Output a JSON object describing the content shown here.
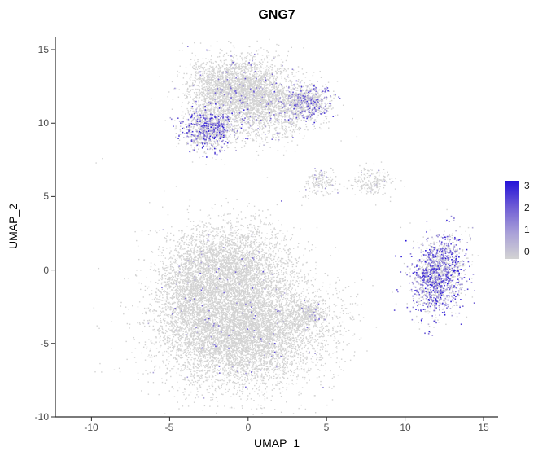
{
  "title": "GNG7",
  "axes": {
    "x_label": "UMAP_1",
    "y_label": "UMAP_2"
  },
  "chart_data": {
    "type": "scatter",
    "title": "GNG7",
    "xlabel": "UMAP_1",
    "ylabel": "UMAP_2",
    "xlim": [
      -12.3,
      15.9
    ],
    "ylim": [
      -10,
      15.9
    ],
    "xticks": [
      "-10",
      "-5",
      "0",
      "5",
      "10",
      "15"
    ],
    "yticks": [
      "15",
      "10",
      "5",
      "0",
      "-5",
      "-10"
    ],
    "legend_ticks": [
      "3",
      "2",
      "1",
      "0"
    ],
    "grid": false,
    "legend_position": "right",
    "color_scale": {
      "domain": [
        0,
        3
      ],
      "stops": [
        "#d3d3d3",
        "#a9a0d8",
        "#6e5cd5",
        "#2311d8"
      ],
      "zero_color": "#d3d3d3"
    },
    "clusters": [
      {
        "name": "upper-blob-right-lobe",
        "cx": 0.3,
        "cy": 12.3,
        "sx": 1.3,
        "sy": 1.1,
        "n": 2000,
        "expr_frac": 0.035,
        "expr_lo": 0.4,
        "expr_hi": 2.5
      },
      {
        "name": "upper-blob-left-lobe",
        "cx": -2.0,
        "cy": 12.5,
        "sx": 1.0,
        "sy": 0.95,
        "n": 1000,
        "expr_frac": 0.03,
        "expr_lo": 0.4,
        "expr_hi": 2.2
      },
      {
        "name": "upper-blob-skirt",
        "cx": 0.3,
        "cy": 11.0,
        "sx": 1.9,
        "sy": 0.8,
        "n": 650,
        "expr_frac": 0.05,
        "expr_lo": 0.4,
        "expr_hi": 2.2
      },
      {
        "name": "upper-left-cluster",
        "cx": -2.5,
        "cy": 9.6,
        "sx": 0.85,
        "sy": 0.7,
        "n": 1050,
        "expr_frac": 0.3,
        "expr_lo": 0.5,
        "expr_hi": 3
      },
      {
        "name": "upper-right-cluster",
        "cx": 3.6,
        "cy": 11.4,
        "sx": 0.8,
        "sy": 0.65,
        "n": 800,
        "expr_frac": 0.24,
        "expr_lo": 0.4,
        "expr_hi": 2.6
      },
      {
        "name": "upper-bridge-scatter",
        "cx": 1.4,
        "cy": 9.8,
        "sx": 1.4,
        "sy": 0.75,
        "n": 280,
        "expr_frac": 0.07,
        "expr_lo": 0.4,
        "expr_hi": 2.0
      },
      {
        "name": "main-blob-upper",
        "cx": -1.2,
        "cy": 0.2,
        "sx": 1.9,
        "sy": 1.5,
        "n": 3200,
        "expr_frac": 0.01,
        "expr_lo": 0.4,
        "expr_hi": 2.2
      },
      {
        "name": "main-blob-lower",
        "cx": -0.4,
        "cy": -4.1,
        "sx": 2.6,
        "sy": 1.9,
        "n": 7200,
        "expr_frac": 0.012,
        "expr_lo": 0.4,
        "expr_hi": 2.5
      },
      {
        "name": "main-blob-left",
        "cx": -3.8,
        "cy": -1.8,
        "sx": 1.0,
        "sy": 1.7,
        "n": 1000,
        "expr_frac": 0.01,
        "expr_lo": 0.4,
        "expr_hi": 2.0
      },
      {
        "name": "main-blob-appendage",
        "cx": 3.9,
        "cy": -2.9,
        "sx": 0.55,
        "sy": 0.45,
        "n": 300,
        "expr_frac": 0.03,
        "expr_lo": 0.4,
        "expr_hi": 2.0
      },
      {
        "name": "small-cluster-center",
        "cx": 4.6,
        "cy": 5.9,
        "sx": 0.5,
        "sy": 0.45,
        "n": 170,
        "expr_frac": 0.05,
        "expr_lo": 0.4,
        "expr_hi": 1.5
      },
      {
        "name": "small-cluster-right",
        "cx": 7.9,
        "cy": 5.9,
        "sx": 0.65,
        "sy": 0.5,
        "n": 200,
        "expr_frac": 0.03,
        "expr_lo": 0.4,
        "expr_hi": 1.5
      },
      {
        "name": "right-cluster",
        "cx": 12.1,
        "cy": -0.3,
        "sx": 0.8,
        "sy": 1.35,
        "rot": -12,
        "n": 1500,
        "expr_frac": 0.5,
        "expr_lo": 0.5,
        "expr_hi": 3
      }
    ],
    "outliers": [
      [
        -9.3,
        7.6
      ],
      [
        -9.7,
        7.3
      ],
      [
        -6.3,
        4.6
      ],
      [
        -4.6,
        5.7
      ],
      [
        -7.9,
        -0.6
      ],
      [
        1.2,
        6.3
      ],
      [
        2.1,
        4.7,
        1.8
      ],
      [
        3.4,
        4.4
      ],
      [
        5.9,
        8.8
      ],
      [
        6.9,
        9.1
      ],
      [
        9.7,
        2.9
      ],
      [
        10.3,
        3.2
      ],
      [
        14.1,
        2.3
      ],
      [
        9.4,
        -2.3
      ],
      [
        6.4,
        -4.1
      ],
      [
        13.9,
        -3.2
      ],
      [
        -1.5,
        7.2
      ],
      [
        0.5,
        7.5
      ]
    ]
  }
}
